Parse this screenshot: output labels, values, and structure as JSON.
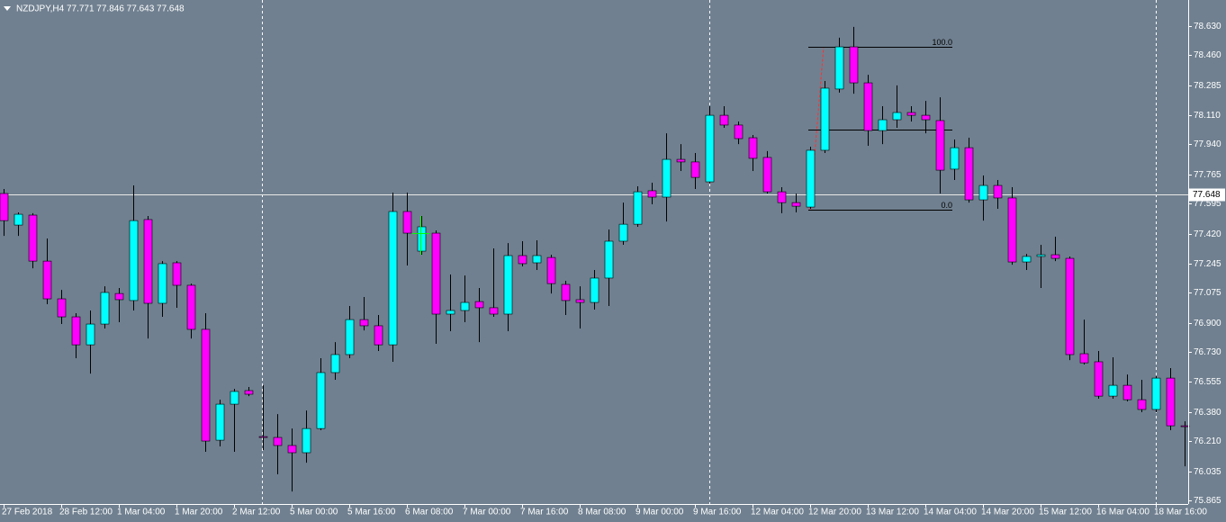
{
  "chart_data": {
    "type": "candlestick",
    "title": "NZDJPY,H4  77.771 77.846 77.643 77.648",
    "categories": [
      "27 Feb 2018",
      null,
      null,
      null,
      "28 Feb 12:00",
      null,
      null,
      null,
      "1 Mar 04:00",
      null,
      null,
      null,
      "1 Mar 20:00",
      null,
      null,
      null,
      "2 Mar 12:00",
      null,
      null,
      null,
      "5 Mar 00:00",
      null,
      null,
      null,
      "5 Mar 16:00",
      null,
      null,
      null,
      "6 Mar 08:00",
      null,
      null,
      null,
      "7 Mar 00:00",
      null,
      null,
      null,
      "7 Mar 16:00",
      null,
      null,
      null,
      "8 Mar 08:00",
      null,
      null,
      null,
      "9 Mar 00:00",
      null,
      null,
      null,
      "9 Mar 16:00",
      null,
      null,
      null,
      "12 Mar 04:00",
      null,
      null,
      null,
      "12 Mar 20:00",
      null,
      null,
      null,
      "13 Mar 12:00",
      null,
      null,
      null,
      "14 Mar 04:00",
      null,
      null,
      null,
      "14 Mar 20:00",
      null,
      null,
      null,
      "15 Mar 12:00",
      null,
      null,
      null,
      "16 Mar 04:00",
      null,
      null,
      null,
      "18 Mar 16:00",
      null,
      null
    ],
    "open": [
      77.654,
      77.47,
      77.528,
      77.26,
      77.04,
      76.935,
      76.772,
      76.893,
      77.071,
      77.03,
      77.502,
      77.014,
      77.25,
      77.119,
      76.862,
      76.216,
      76.426,
      76.505,
      76.237,
      76.232,
      76.185,
      76.143,
      76.284,
      76.61,
      76.715,
      76.919,
      76.883,
      76.772,
      77.549,
      77.318,
      77.423,
      76.951,
      76.972,
      77.024,
      76.988,
      76.951,
      77.292,
      77.25,
      77.281,
      77.124,
      77.035,
      77.019,
      77.161,
      77.376,
      77.475,
      77.67,
      77.633,
      77.853,
      77.838,
      77.722,
      78.11,
      78.053,
      77.979,
      77.864,
      77.664,
      77.601,
      77.575,
      77.906,
      78.263,
      78.509,
      78.299,
      78.021,
      78.084,
      78.126,
      78.11,
      78.079,
      77.796,
      77.921,
      77.617,
      77.701,
      77.628,
      77.255,
      77.287,
      77.297,
      77.276,
      76.72,
      76.673,
      76.473,
      76.536,
      76.452,
      76.395,
      76.578,
      76.3
    ],
    "high": [
      77.68,
      77.544,
      77.539,
      77.392,
      77.092,
      76.956,
      76.972,
      77.113,
      77.103,
      77.701,
      77.523,
      77.26,
      77.26,
      77.129,
      76.956,
      76.452,
      76.515,
      76.526,
      76.536,
      76.368,
      76.284,
      76.389,
      76.694,
      76.788,
      76.998,
      77.051,
      76.946,
      77.659,
      77.659,
      77.523,
      77.439,
      77.182,
      77.176,
      77.103,
      77.334,
      77.365,
      77.376,
      77.381,
      77.297,
      77.145,
      77.113,
      77.208,
      77.444,
      77.601,
      77.696,
      77.717,
      78.005,
      77.942,
      77.89,
      78.163,
      78.163,
      78.074,
      77.995,
      77.901,
      77.691,
      77.654,
      77.927,
      78.31,
      78.562,
      78.625,
      78.346,
      78.163,
      78.284,
      78.163,
      78.194,
      78.215,
      77.969,
      77.979,
      77.759,
      77.733,
      77.691,
      77.302,
      77.355,
      77.402,
      77.287,
      76.919,
      76.736,
      76.699,
      76.599,
      76.568,
      76.589,
      76.636,
      76.326
    ],
    "low": [
      77.407,
      77.407,
      77.218,
      77.009,
      76.893,
      76.694,
      76.604,
      76.867,
      76.904,
      76.972,
      76.809,
      76.935,
      76.988,
      76.809,
      76.148,
      76.18,
      76.148,
      76.473,
      76.159,
      76.017,
      75.917,
      76.085,
      76.274,
      76.568,
      76.694,
      76.856,
      76.736,
      76.673,
      77.234,
      77.297,
      76.778,
      76.851,
      76.904,
      76.788,
      76.935,
      76.851,
      77.229,
      77.208,
      77.071,
      76.946,
      76.867,
      76.977,
      76.998,
      77.355,
      77.46,
      77.591,
      77.491,
      77.785,
      77.68,
      77.712,
      78.037,
      77.942,
      77.785,
      77.654,
      77.539,
      77.544,
      77.565,
      77.89,
      78.242,
      78.236,
      77.932,
      77.942,
      78.037,
      78.074,
      78.005,
      77.654,
      77.733,
      77.601,
      77.496,
      77.565,
      77.239,
      77.208,
      77.103,
      77.26,
      76.683,
      76.657,
      76.458,
      76.458,
      76.442,
      76.379,
      76.379,
      76.274,
      76.064
    ],
    "close": [
      77.496,
      77.533,
      77.26,
      77.04,
      76.935,
      76.772,
      76.893,
      77.077,
      77.035,
      77.496,
      77.014,
      77.245,
      77.119,
      76.862,
      76.211,
      76.426,
      76.5,
      76.484,
      76.232,
      76.185,
      76.143,
      76.284,
      76.61,
      76.715,
      76.919,
      76.883,
      76.772,
      77.549,
      77.423,
      77.46,
      76.951,
      76.972,
      77.019,
      76.988,
      76.951,
      77.292,
      77.245,
      77.292,
      77.129,
      77.03,
      77.019,
      77.161,
      77.376,
      77.475,
      77.664,
      77.633,
      77.853,
      77.838,
      77.748,
      78.11,
      78.053,
      77.974,
      77.859,
      77.664,
      77.601,
      77.58,
      77.906,
      78.268,
      78.509,
      78.299,
      78.021,
      78.084,
      78.126,
      78.11,
      78.084,
      77.79,
      77.921,
      77.617,
      77.701,
      77.628,
      77.255,
      77.287,
      77.297,
      77.276,
      76.715,
      76.667,
      76.473,
      76.536,
      76.452,
      76.395,
      76.578,
      76.3,
      76.295
    ],
    "up_color": "#00ffff",
    "down_color": "#ff00ff",
    "ylim": [
      75.844,
      78.782
    ],
    "yticks": [
      {
        "value": 78.63,
        "label": "78.630"
      },
      {
        "value": 78.46,
        "label": "78.460"
      },
      78.285,
      {
        "value": 78.11,
        "label": "78.110"
      },
      {
        "value": 77.94,
        "label": "77.940"
      },
      77.765,
      77.595,
      {
        "value": 77.42,
        "label": "77.420"
      },
      77.245,
      77.075,
      {
        "value": 76.9,
        "label": "76.900"
      },
      {
        "value": 76.73,
        "label": "76.730"
      },
      76.555,
      {
        "value": 76.38,
        "label": "76.380"
      },
      {
        "value": 76.21,
        "label": "76.210"
      },
      76.035,
      75.865
    ],
    "bid": 77.648,
    "fibo_levels": [
      {
        "value": 78.509,
        "label": "100.0"
      },
      {
        "value": 78.027
      },
      {
        "value": 77.56,
        "label": "0.0"
      }
    ]
  }
}
